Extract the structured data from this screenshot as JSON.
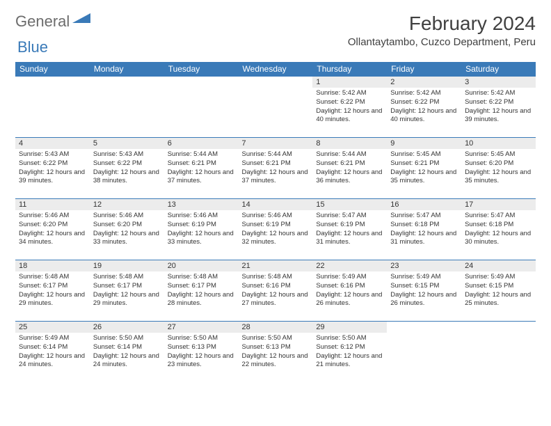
{
  "logo": {
    "general": "General",
    "blue": "Blue"
  },
  "title": "February 2024",
  "location": "Ollantaytambo, Cuzco Department, Peru",
  "colors": {
    "header_bg": "#3a7ab8",
    "daynum_bg": "#ececec",
    "border": "#3a7ab8",
    "text": "#333333",
    "logo_gray": "#6c6c6c",
    "logo_blue": "#3a7ab8",
    "background": "#ffffff"
  },
  "day_headers": [
    "Sunday",
    "Monday",
    "Tuesday",
    "Wednesday",
    "Thursday",
    "Friday",
    "Saturday"
  ],
  "weeks": [
    [
      {
        "empty": true
      },
      {
        "empty": true
      },
      {
        "empty": true
      },
      {
        "empty": true
      },
      {
        "n": "1",
        "sr": "Sunrise: 5:42 AM",
        "ss": "Sunset: 6:22 PM",
        "dl": "Daylight: 12 hours and 40 minutes."
      },
      {
        "n": "2",
        "sr": "Sunrise: 5:42 AM",
        "ss": "Sunset: 6:22 PM",
        "dl": "Daylight: 12 hours and 40 minutes."
      },
      {
        "n": "3",
        "sr": "Sunrise: 5:42 AM",
        "ss": "Sunset: 6:22 PM",
        "dl": "Daylight: 12 hours and 39 minutes."
      }
    ],
    [
      {
        "n": "4",
        "sr": "Sunrise: 5:43 AM",
        "ss": "Sunset: 6:22 PM",
        "dl": "Daylight: 12 hours and 39 minutes."
      },
      {
        "n": "5",
        "sr": "Sunrise: 5:43 AM",
        "ss": "Sunset: 6:22 PM",
        "dl": "Daylight: 12 hours and 38 minutes."
      },
      {
        "n": "6",
        "sr": "Sunrise: 5:44 AM",
        "ss": "Sunset: 6:21 PM",
        "dl": "Daylight: 12 hours and 37 minutes."
      },
      {
        "n": "7",
        "sr": "Sunrise: 5:44 AM",
        "ss": "Sunset: 6:21 PM",
        "dl": "Daylight: 12 hours and 37 minutes."
      },
      {
        "n": "8",
        "sr": "Sunrise: 5:44 AM",
        "ss": "Sunset: 6:21 PM",
        "dl": "Daylight: 12 hours and 36 minutes."
      },
      {
        "n": "9",
        "sr": "Sunrise: 5:45 AM",
        "ss": "Sunset: 6:21 PM",
        "dl": "Daylight: 12 hours and 35 minutes."
      },
      {
        "n": "10",
        "sr": "Sunrise: 5:45 AM",
        "ss": "Sunset: 6:20 PM",
        "dl": "Daylight: 12 hours and 35 minutes."
      }
    ],
    [
      {
        "n": "11",
        "sr": "Sunrise: 5:46 AM",
        "ss": "Sunset: 6:20 PM",
        "dl": "Daylight: 12 hours and 34 minutes."
      },
      {
        "n": "12",
        "sr": "Sunrise: 5:46 AM",
        "ss": "Sunset: 6:20 PM",
        "dl": "Daylight: 12 hours and 33 minutes."
      },
      {
        "n": "13",
        "sr": "Sunrise: 5:46 AM",
        "ss": "Sunset: 6:19 PM",
        "dl": "Daylight: 12 hours and 33 minutes."
      },
      {
        "n": "14",
        "sr": "Sunrise: 5:46 AM",
        "ss": "Sunset: 6:19 PM",
        "dl": "Daylight: 12 hours and 32 minutes."
      },
      {
        "n": "15",
        "sr": "Sunrise: 5:47 AM",
        "ss": "Sunset: 6:19 PM",
        "dl": "Daylight: 12 hours and 31 minutes."
      },
      {
        "n": "16",
        "sr": "Sunrise: 5:47 AM",
        "ss": "Sunset: 6:18 PM",
        "dl": "Daylight: 12 hours and 31 minutes."
      },
      {
        "n": "17",
        "sr": "Sunrise: 5:47 AM",
        "ss": "Sunset: 6:18 PM",
        "dl": "Daylight: 12 hours and 30 minutes."
      }
    ],
    [
      {
        "n": "18",
        "sr": "Sunrise: 5:48 AM",
        "ss": "Sunset: 6:17 PM",
        "dl": "Daylight: 12 hours and 29 minutes."
      },
      {
        "n": "19",
        "sr": "Sunrise: 5:48 AM",
        "ss": "Sunset: 6:17 PM",
        "dl": "Daylight: 12 hours and 29 minutes."
      },
      {
        "n": "20",
        "sr": "Sunrise: 5:48 AM",
        "ss": "Sunset: 6:17 PM",
        "dl": "Daylight: 12 hours and 28 minutes."
      },
      {
        "n": "21",
        "sr": "Sunrise: 5:48 AM",
        "ss": "Sunset: 6:16 PM",
        "dl": "Daylight: 12 hours and 27 minutes."
      },
      {
        "n": "22",
        "sr": "Sunrise: 5:49 AM",
        "ss": "Sunset: 6:16 PM",
        "dl": "Daylight: 12 hours and 26 minutes."
      },
      {
        "n": "23",
        "sr": "Sunrise: 5:49 AM",
        "ss": "Sunset: 6:15 PM",
        "dl": "Daylight: 12 hours and 26 minutes."
      },
      {
        "n": "24",
        "sr": "Sunrise: 5:49 AM",
        "ss": "Sunset: 6:15 PM",
        "dl": "Daylight: 12 hours and 25 minutes."
      }
    ],
    [
      {
        "n": "25",
        "sr": "Sunrise: 5:49 AM",
        "ss": "Sunset: 6:14 PM",
        "dl": "Daylight: 12 hours and 24 minutes."
      },
      {
        "n": "26",
        "sr": "Sunrise: 5:50 AM",
        "ss": "Sunset: 6:14 PM",
        "dl": "Daylight: 12 hours and 24 minutes."
      },
      {
        "n": "27",
        "sr": "Sunrise: 5:50 AM",
        "ss": "Sunset: 6:13 PM",
        "dl": "Daylight: 12 hours and 23 minutes."
      },
      {
        "n": "28",
        "sr": "Sunrise: 5:50 AM",
        "ss": "Sunset: 6:13 PM",
        "dl": "Daylight: 12 hours and 22 minutes."
      },
      {
        "n": "29",
        "sr": "Sunrise: 5:50 AM",
        "ss": "Sunset: 6:12 PM",
        "dl": "Daylight: 12 hours and 21 minutes."
      },
      {
        "empty": true
      },
      {
        "empty": true
      }
    ]
  ]
}
